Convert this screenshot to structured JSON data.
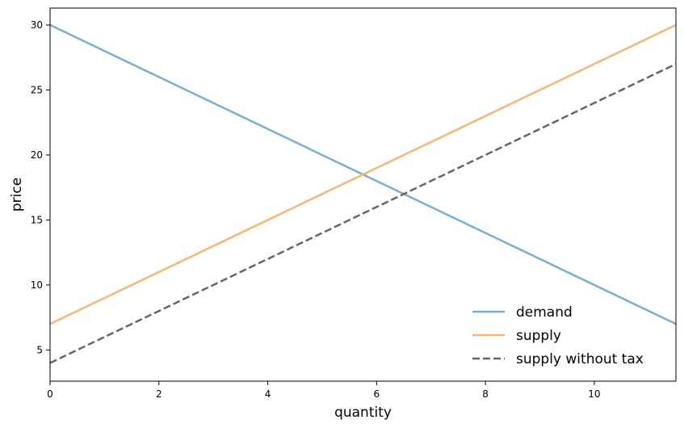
{
  "chart_data": {
    "type": "line",
    "xlabel": "quantity",
    "ylabel": "price",
    "xlim": [
      0,
      11.5
    ],
    "ylim": [
      2.6,
      31.3
    ],
    "xticks": [
      0,
      2,
      4,
      6,
      8,
      10
    ],
    "yticks": [
      5,
      10,
      15,
      20,
      25,
      30
    ],
    "grid": false,
    "legend_position": "lower-right",
    "series": [
      {
        "name": "demand",
        "color": "#77afd3",
        "style": "solid",
        "x": [
          0,
          11.5
        ],
        "y": [
          30,
          7
        ]
      },
      {
        "name": "supply",
        "color": "#f9b672",
        "style": "solid",
        "x": [
          0,
          11.5
        ],
        "y": [
          7,
          30
        ]
      },
      {
        "name": "supply without tax",
        "color": "#666666",
        "style": "dashed",
        "x": [
          0,
          11.5
        ],
        "y": [
          4,
          27
        ]
      }
    ]
  }
}
